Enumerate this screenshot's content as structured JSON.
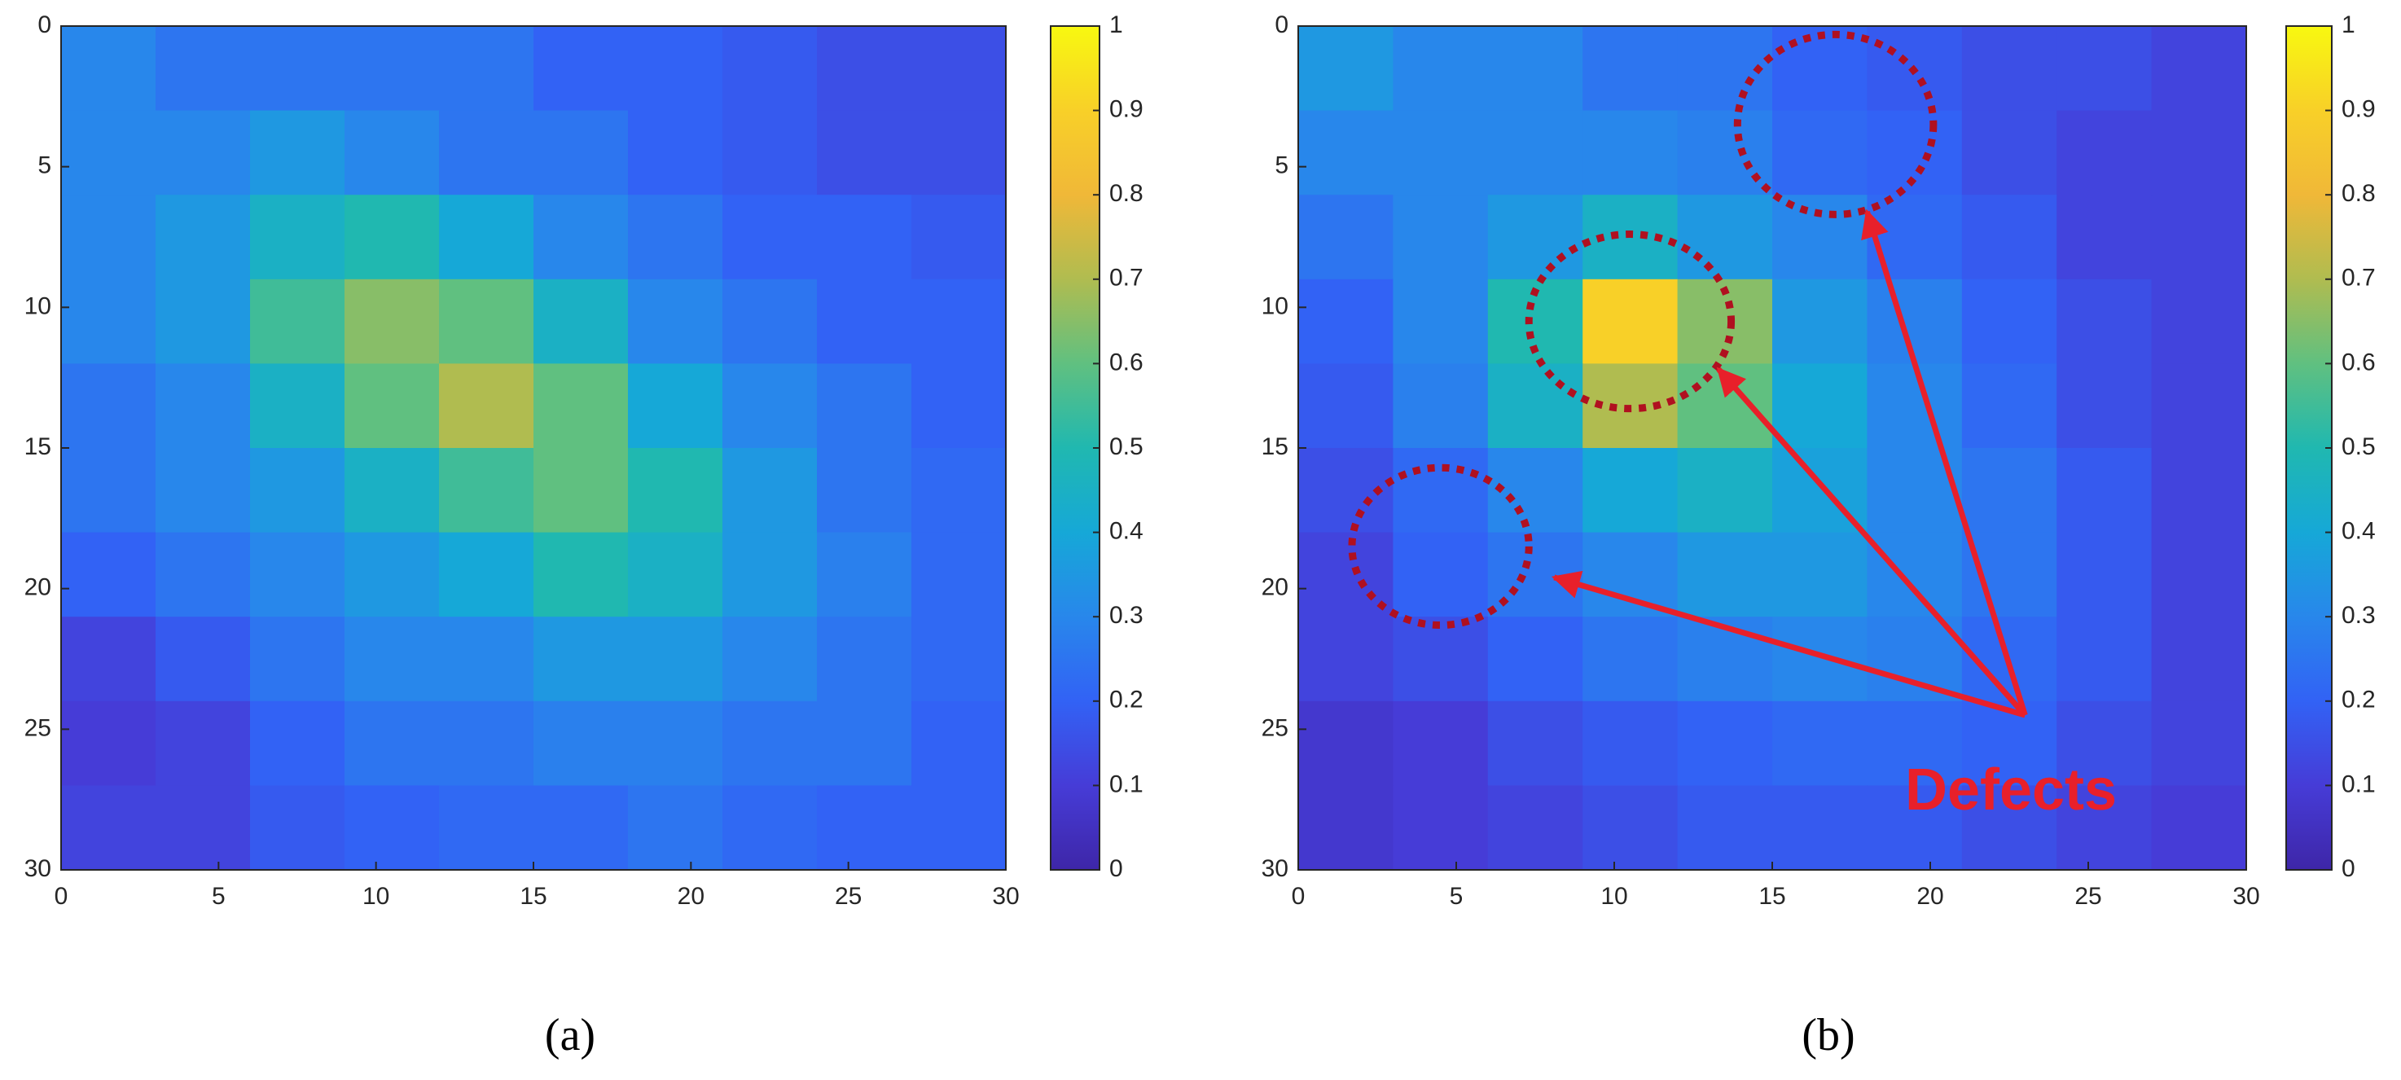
{
  "chart_data": [
    {
      "type": "heatmap",
      "caption": "(a)",
      "colormap": "parula",
      "xlim": [
        0,
        30
      ],
      "ylim": [
        0,
        30
      ],
      "ydir": "reverse",
      "xticks": [
        0,
        5,
        10,
        15,
        20,
        25,
        30
      ],
      "yticks": [
        0,
        5,
        10,
        15,
        20,
        25,
        30
      ],
      "clim": [
        0,
        1
      ],
      "cticks": [
        0,
        0.1,
        0.2,
        0.3,
        0.4,
        0.5,
        0.6,
        0.7,
        0.8,
        0.9,
        1
      ],
      "z": [
        [
          0.3,
          0.25,
          0.25,
          0.25,
          0.25,
          0.2,
          0.2,
          0.18,
          0.15,
          0.15
        ],
        [
          0.3,
          0.3,
          0.35,
          0.3,
          0.25,
          0.25,
          0.2,
          0.18,
          0.15,
          0.15
        ],
        [
          0.3,
          0.35,
          0.45,
          0.5,
          0.4,
          0.3,
          0.25,
          0.2,
          0.2,
          0.18
        ],
        [
          0.3,
          0.35,
          0.55,
          0.65,
          0.6,
          0.45,
          0.3,
          0.25,
          0.2,
          0.2
        ],
        [
          0.25,
          0.3,
          0.45,
          0.6,
          0.7,
          0.6,
          0.4,
          0.3,
          0.25,
          0.2
        ],
        [
          0.25,
          0.3,
          0.35,
          0.45,
          0.55,
          0.6,
          0.5,
          0.35,
          0.25,
          0.22
        ],
        [
          0.2,
          0.25,
          0.3,
          0.35,
          0.4,
          0.5,
          0.45,
          0.35,
          0.28,
          0.22
        ],
        [
          0.12,
          0.18,
          0.25,
          0.3,
          0.3,
          0.35,
          0.35,
          0.3,
          0.25,
          0.22
        ],
        [
          0.1,
          0.12,
          0.2,
          0.25,
          0.25,
          0.28,
          0.28,
          0.25,
          0.25,
          0.2
        ],
        [
          0.12,
          0.12,
          0.18,
          0.2,
          0.22,
          0.22,
          0.25,
          0.22,
          0.2,
          0.2
        ]
      ]
    },
    {
      "type": "heatmap",
      "caption": "(b)",
      "colormap": "parula",
      "annotation": "Defects",
      "xlim": [
        0,
        30
      ],
      "ylim": [
        0,
        30
      ],
      "ydir": "reverse",
      "xticks": [
        0,
        5,
        10,
        15,
        20,
        25,
        30
      ],
      "yticks": [
        0,
        5,
        10,
        15,
        20,
        25,
        30
      ],
      "clim": [
        0,
        1
      ],
      "cticks": [
        0,
        0.1,
        0.2,
        0.3,
        0.4,
        0.5,
        0.6,
        0.7,
        0.8,
        0.9,
        1
      ],
      "z": [
        [
          0.35,
          0.3,
          0.3,
          0.25,
          0.25,
          0.2,
          0.18,
          0.15,
          0.15,
          0.12
        ],
        [
          0.3,
          0.3,
          0.3,
          0.3,
          0.28,
          0.22,
          0.2,
          0.15,
          0.12,
          0.12
        ],
        [
          0.25,
          0.3,
          0.35,
          0.45,
          0.35,
          0.3,
          0.22,
          0.18,
          0.12,
          0.12
        ],
        [
          0.2,
          0.3,
          0.5,
          0.9,
          0.65,
          0.35,
          0.28,
          0.2,
          0.15,
          0.12
        ],
        [
          0.18,
          0.28,
          0.45,
          0.7,
          0.6,
          0.4,
          0.3,
          0.22,
          0.15,
          0.12
        ],
        [
          0.15,
          0.22,
          0.3,
          0.4,
          0.45,
          0.38,
          0.3,
          0.25,
          0.18,
          0.12
        ],
        [
          0.12,
          0.2,
          0.25,
          0.3,
          0.35,
          0.35,
          0.3,
          0.25,
          0.18,
          0.12
        ],
        [
          0.12,
          0.15,
          0.2,
          0.25,
          0.28,
          0.3,
          0.28,
          0.22,
          0.18,
          0.12
        ],
        [
          0.08,
          0.1,
          0.15,
          0.18,
          0.2,
          0.22,
          0.22,
          0.2,
          0.15,
          0.12
        ],
        [
          0.08,
          0.1,
          0.12,
          0.15,
          0.18,
          0.18,
          0.18,
          0.15,
          0.12,
          0.1
        ]
      ]
    }
  ]
}
